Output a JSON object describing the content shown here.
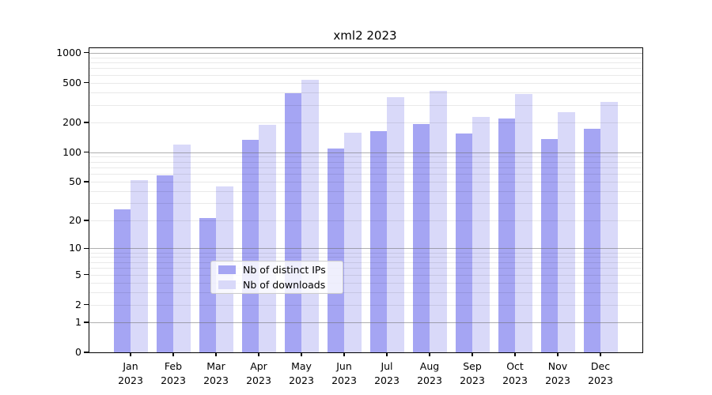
{
  "title": "xml2 2023",
  "chart_data": {
    "type": "bar",
    "title": "xml2 2023",
    "categories": [
      "Jan",
      "Feb",
      "Mar",
      "Apr",
      "May",
      "Jun",
      "Jul",
      "Aug",
      "Sep",
      "Oct",
      "Nov",
      "Dec"
    ],
    "x_year": "2023",
    "series": [
      {
        "name": "Nb of distinct IPs",
        "color": "#a5a5f3",
        "values": [
          26,
          58,
          21,
          133,
          394,
          109,
          163,
          192,
          155,
          220,
          136,
          173
        ]
      },
      {
        "name": "Nb of downloads",
        "color": "#d9d9f9",
        "values": [
          52,
          119,
          45,
          188,
          535,
          158,
          356,
          415,
          225,
          383,
          253,
          323
        ]
      }
    ],
    "xlabel": "",
    "ylabel": "",
    "y_axis": {
      "scale": "log1p",
      "ticks": [
        0,
        1,
        2,
        5,
        10,
        20,
        50,
        100,
        200,
        500,
        1000
      ],
      "major_gridline_values": [
        1,
        10,
        100,
        1000
      ],
      "minor_gridline_values": [
        2,
        3,
        4,
        5,
        6,
        7,
        8,
        9,
        20,
        30,
        40,
        50,
        60,
        70,
        80,
        90,
        200,
        300,
        400,
        500,
        600,
        700,
        800,
        900
      ],
      "ylim": [
        0,
        1110
      ]
    },
    "grid": true,
    "legend_position": "bottom-center"
  },
  "colors": {
    "background": "#ffffff",
    "bar_dark": "#a5a5f3",
    "bar_light": "#d9d9f9",
    "major_grid": "#8f8f8f",
    "minor_grid": "#e9e9e9",
    "spine": "#000000",
    "text": "#000000",
    "legend_border": "#cccccc"
  }
}
